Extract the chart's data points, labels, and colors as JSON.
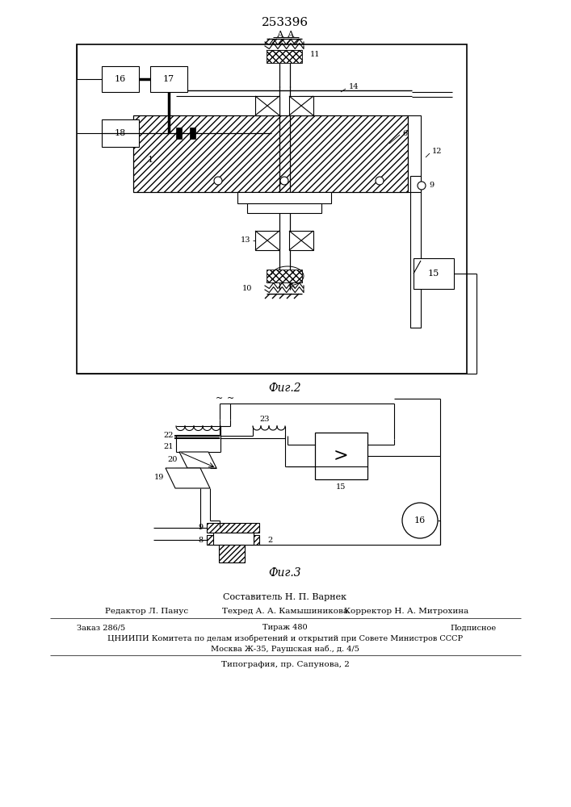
{
  "title": "253396",
  "fig2_label": "Фиг.2",
  "fig3_label": "Фиг.3",
  "footer_composer": "Составитель Н. П. Варнек",
  "footer_editor": "Редактор Л. Панус",
  "footer_techred": "Техред А. А. Камышиникова",
  "footer_corrector": "Корректор Н. А. Митрохина",
  "footer_order": "Заказ 286/5",
  "footer_circ": "Тираж 480",
  "footer_sub": "Подписное",
  "footer_inst": "ЦНИИПИ Комитета по делам изобретений и открытий при Совете Министров СССР",
  "footer_addr": "Москва Ж-35, Раушская наб., д. 4/5",
  "footer_print": "Типография, пр. Сапунова, 2",
  "bg_color": "#ffffff",
  "line_color": "#000000"
}
